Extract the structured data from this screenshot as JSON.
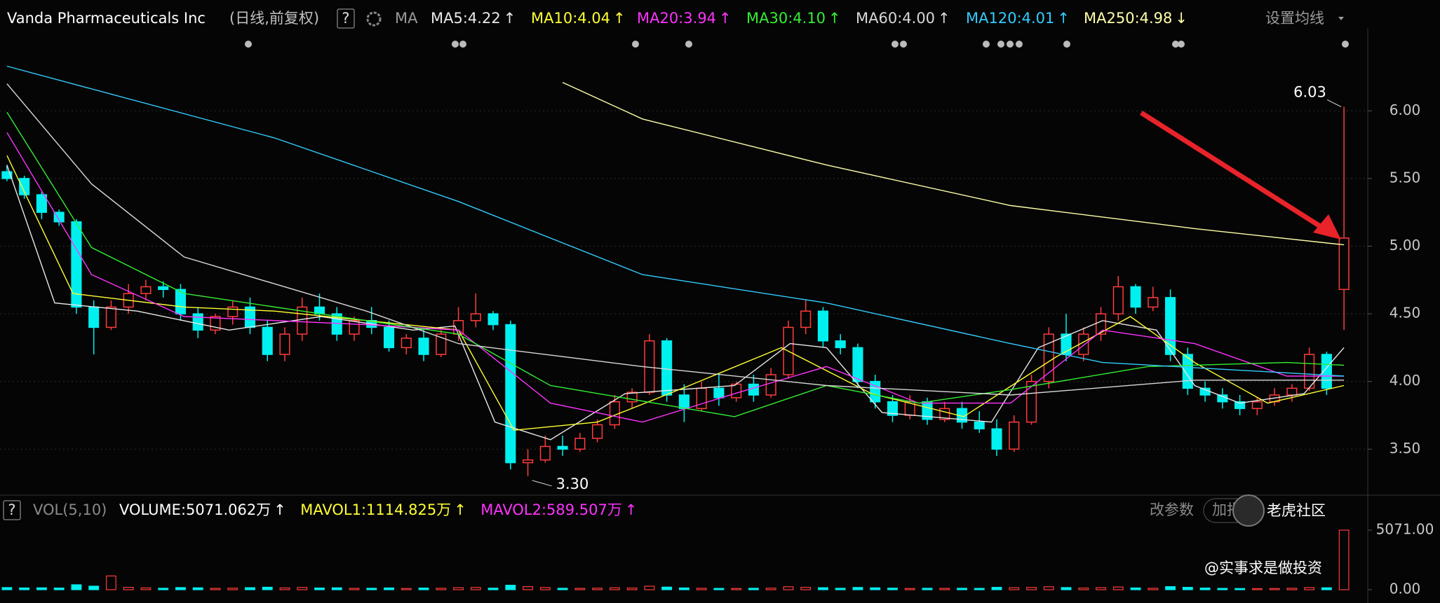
{
  "header": {
    "title": "Vanda Pharmaceuticals Inc",
    "mode": "(日线,前复权)",
    "help": "?",
    "ma_label": "MA",
    "settings": "设置均线",
    "vol_help": "?",
    "vol_label": "VOL(5,10)",
    "vol_items": [
      {
        "text": "VOLUME:5071.062万",
        "trend": "↑",
        "color": "#ffffff"
      },
      {
        "text": "MAVOL1:1114.825万",
        "trend": "↑",
        "color": "#ffff33"
      },
      {
        "text": "MAVOL2:589.507万",
        "trend": "↑",
        "color": "#ff33ff"
      }
    ],
    "edit_params": "改参数",
    "add_indicator": "加指标",
    "watermark": "老虎社区",
    "author": "@实事求是做投资"
  },
  "chart_data": [
    {
      "type": "candlestick",
      "up_color": "#ff3b3b",
      "down_color": "#00f0f0",
      "grid": true,
      "ylim": [
        3.16,
        6.55
      ],
      "xlim": [
        -0.4,
        77.6
      ],
      "yticks": [
        {
          "value": 3.5,
          "label": "3.50"
        },
        {
          "value": 4,
          "label": "4.00"
        },
        {
          "value": 4.5,
          "label": "4.50"
        },
        {
          "value": 5,
          "label": "5.00"
        },
        {
          "value": 5.5,
          "label": "5.50"
        },
        {
          "value": 6,
          "label": "6.00"
        }
      ],
      "candles": [
        [
          5.55,
          5.6,
          5.48,
          5.5
        ],
        [
          5.5,
          5.52,
          5.35,
          5.38
        ],
        [
          5.38,
          5.4,
          5.2,
          5.25
        ],
        [
          5.25,
          5.27,
          5.15,
          5.18
        ],
        [
          5.18,
          5.2,
          4.5,
          4.55
        ],
        [
          4.55,
          4.6,
          4.2,
          4.4
        ],
        [
          4.4,
          4.6,
          4.38,
          4.55
        ],
        [
          4.55,
          4.72,
          4.5,
          4.65
        ],
        [
          4.65,
          4.75,
          4.6,
          4.7
        ],
        [
          4.7,
          4.74,
          4.62,
          4.68
        ],
        [
          4.68,
          4.72,
          4.45,
          4.5
        ],
        [
          4.5,
          4.55,
          4.32,
          4.38
        ],
        [
          4.38,
          4.5,
          4.35,
          4.48
        ],
        [
          4.48,
          4.6,
          4.42,
          4.55
        ],
        [
          4.55,
          4.62,
          4.35,
          4.4
        ],
        [
          4.4,
          4.45,
          4.15,
          4.2
        ],
        [
          4.2,
          4.4,
          4.15,
          4.35
        ],
        [
          4.35,
          4.62,
          4.3,
          4.55
        ],
        [
          4.55,
          4.65,
          4.45,
          4.5
        ],
        [
          4.5,
          4.55,
          4.3,
          4.35
        ],
        [
          4.35,
          4.48,
          4.3,
          4.45
        ],
        [
          4.45,
          4.55,
          4.35,
          4.4
        ],
        [
          4.4,
          4.45,
          4.22,
          4.25
        ],
        [
          4.25,
          4.35,
          4.2,
          4.32
        ],
        [
          4.32,
          4.4,
          4.15,
          4.2
        ],
        [
          4.2,
          4.38,
          4.18,
          4.35
        ],
        [
          4.35,
          4.55,
          4.3,
          4.45
        ],
        [
          4.45,
          4.65,
          4.4,
          4.5
        ],
        [
          4.5,
          4.52,
          4.38,
          4.42
        ],
        [
          4.42,
          4.45,
          3.35,
          3.4
        ],
        [
          3.4,
          3.5,
          3.3,
          3.42
        ],
        [
          3.42,
          3.6,
          3.4,
          3.52
        ],
        [
          3.52,
          3.6,
          3.45,
          3.5
        ],
        [
          3.5,
          3.62,
          3.48,
          3.58
        ],
        [
          3.58,
          3.72,
          3.55,
          3.68
        ],
        [
          3.68,
          3.9,
          3.65,
          3.85
        ],
        [
          3.85,
          3.95,
          3.8,
          3.92
        ],
        [
          3.92,
          4.35,
          3.9,
          4.3
        ],
        [
          4.3,
          4.32,
          3.85,
          3.9
        ],
        [
          3.9,
          3.98,
          3.7,
          3.8
        ],
        [
          3.8,
          4.0,
          3.78,
          3.95
        ],
        [
          3.95,
          4.05,
          3.82,
          3.88
        ],
        [
          3.88,
          4.0,
          3.85,
          3.98
        ],
        [
          3.98,
          4.05,
          3.85,
          3.9
        ],
        [
          3.9,
          4.1,
          3.88,
          4.05
        ],
        [
          4.05,
          4.45,
          4.02,
          4.4
        ],
        [
          4.4,
          4.6,
          4.35,
          4.52
        ],
        [
          4.52,
          4.55,
          4.25,
          4.3
        ],
        [
          4.3,
          4.35,
          4.2,
          4.25
        ],
        [
          4.25,
          4.28,
          3.95,
          4.0
        ],
        [
          4.0,
          4.05,
          3.8,
          3.85
        ],
        [
          3.85,
          3.9,
          3.7,
          3.75
        ],
        [
          3.75,
          3.9,
          3.72,
          3.85
        ],
        [
          3.85,
          3.88,
          3.68,
          3.72
        ],
        [
          3.72,
          3.85,
          3.7,
          3.8
        ],
        [
          3.8,
          3.85,
          3.65,
          3.7
        ],
        [
          3.7,
          3.78,
          3.62,
          3.65
        ],
        [
          3.65,
          3.72,
          3.45,
          3.5
        ],
        [
          3.5,
          3.75,
          3.48,
          3.7
        ],
        [
          3.7,
          4.05,
          3.68,
          4.0
        ],
        [
          4.0,
          4.4,
          3.95,
          4.35
        ],
        [
          4.35,
          4.5,
          4.15,
          4.2
        ],
        [
          4.2,
          4.4,
          4.15,
          4.35
        ],
        [
          4.35,
          4.55,
          4.3,
          4.5
        ],
        [
          4.5,
          4.78,
          4.45,
          4.7
        ],
        [
          4.7,
          4.72,
          4.5,
          4.55
        ],
        [
          4.55,
          4.7,
          4.52,
          4.62
        ],
        [
          4.62,
          4.68,
          4.15,
          4.2
        ],
        [
          4.2,
          4.25,
          3.9,
          3.95
        ],
        [
          3.95,
          4.0,
          3.85,
          3.9
        ],
        [
          3.9,
          3.95,
          3.8,
          3.85
        ],
        [
          3.85,
          3.9,
          3.75,
          3.8
        ],
        [
          3.8,
          3.88,
          3.75,
          3.85
        ],
        [
          3.85,
          3.95,
          3.82,
          3.9
        ],
        [
          3.9,
          3.98,
          3.85,
          3.95
        ],
        [
          3.95,
          4.25,
          3.93,
          4.2
        ],
        [
          4.2,
          4.22,
          3.9,
          3.95
        ],
        [
          4.68,
          6.03,
          4.38,
          5.06
        ]
      ],
      "series": [
        {
          "name": "MA5:4.22",
          "trend": "↑",
          "color": "#e8e8e8",
          "x": [
            0,
            2.75,
            7.5,
            12.8,
            18.1,
            23.4,
            25.8,
            28.1,
            31.3,
            35.6,
            41.9,
            45.1,
            47.2,
            50.4,
            56.7,
            59.4,
            63.1,
            66.2,
            68.4,
            71,
            74.7,
            77
          ],
          "values": [
            5.6,
            4.58,
            4.52,
            4.38,
            4.48,
            4.38,
            4.41,
            3.7,
            3.57,
            3.91,
            3.97,
            4.28,
            4.25,
            3.77,
            3.7,
            4.25,
            4.45,
            4.38,
            3.97,
            3.84,
            3.91,
            4.25
          ]
        },
        {
          "name": "MA10:4.04",
          "trend": "↑",
          "color": "#ffff33",
          "x": [
            0,
            3.8,
            10.2,
            15.4,
            26,
            29.2,
            34,
            39.3,
            44.6,
            49.8,
            55.1,
            60.4,
            64.7,
            68.4,
            72.6,
            77
          ],
          "values": [
            5.67,
            4.65,
            4.55,
            4.52,
            4.38,
            3.64,
            3.7,
            3.97,
            4.25,
            3.91,
            3.74,
            4.18,
            4.48,
            4.14,
            3.84,
            3.97
          ]
        },
        {
          "name": "MA20:3.94",
          "trend": "↑",
          "color": "#ff33ff",
          "x": [
            0,
            4.87,
            10.2,
            20.7,
            26,
            31.3,
            36.6,
            41.9,
            47.2,
            52.5,
            57.8,
            63.1,
            68.4,
            73.7,
            77
          ],
          "values": [
            5.84,
            4.79,
            4.48,
            4.42,
            4.38,
            3.84,
            3.7,
            3.91,
            4.11,
            3.84,
            3.84,
            4.38,
            4.28,
            4.04,
            4.04
          ]
        },
        {
          "name": "MA30:4.10",
          "trend": "↑",
          "color": "#33ee33",
          "x": [
            0,
            4.87,
            10.2,
            20.7,
            26,
            31.3,
            41.9,
            47.2,
            52.5,
            57.8,
            65.7,
            73.7,
            77
          ],
          "values": [
            5.99,
            4.99,
            4.65,
            4.45,
            4.35,
            3.97,
            3.74,
            3.97,
            3.84,
            3.94,
            4.11,
            4.14,
            4.12
          ]
        },
        {
          "name": "MA60:4.00",
          "trend": "↑",
          "color": "#d8d8d8",
          "x": [
            0,
            4.87,
            10.2,
            20.7,
            26,
            36.6,
            47.2,
            57.8,
            68.4,
            77
          ],
          "values": [
            6.2,
            5.46,
            4.92,
            4.52,
            4.28,
            4.11,
            3.97,
            3.9,
            4.01,
            4.01
          ]
        },
        {
          "name": "MA120:4.01",
          "trend": "↑",
          "color": "#33ccff",
          "x": [
            0,
            15.4,
            26,
            36.6,
            47.2,
            57.8,
            63.1,
            77
          ],
          "values": [
            6.33,
            5.8,
            5.33,
            4.79,
            4.58,
            4.28,
            4.14,
            4.04
          ]
        },
        {
          "name": "MA250:4.98",
          "trend": "↓",
          "color": "#ffffaa",
          "x": [
            32,
            36.6,
            47.2,
            57.8,
            68.4,
            77
          ],
          "values": [
            6.21,
            5.94,
            5.6,
            5.3,
            5.13,
            5.01
          ]
        }
      ],
      "annotations": [
        {
          "text": "6.03",
          "x": 77,
          "value": 6.03
        },
        {
          "text": "3.30",
          "x": 30,
          "value": 3.3
        }
      ]
    },
    {
      "type": "bar",
      "ylim": [
        0,
        5071.062
      ],
      "xlim": [
        -0.4,
        77.6
      ],
      "yticks": [
        {
          "value": 5071,
          "label": "5071.00"
        },
        {
          "value": 0,
          "label": "0.00"
        }
      ],
      "values": [
        180,
        150,
        160,
        140,
        420,
        300,
        1170,
        200,
        150,
        120,
        180,
        160,
        110,
        130,
        170,
        210,
        150,
        190,
        140,
        160,
        110,
        120,
        150,
        100,
        140,
        120,
        170,
        190,
        130,
        380,
        260,
        180,
        120,
        110,
        130,
        160,
        140,
        300,
        220,
        150,
        120,
        110,
        100,
        120,
        130,
        250,
        200,
        170,
        120,
        190,
        160,
        130,
        100,
        120,
        110,
        120,
        110,
        200,
        170,
        190,
        250,
        180,
        140,
        170,
        230,
        150,
        120,
        260,
        200,
        140,
        110,
        100,
        90,
        100,
        120,
        180,
        160,
        5071.062
      ]
    }
  ]
}
